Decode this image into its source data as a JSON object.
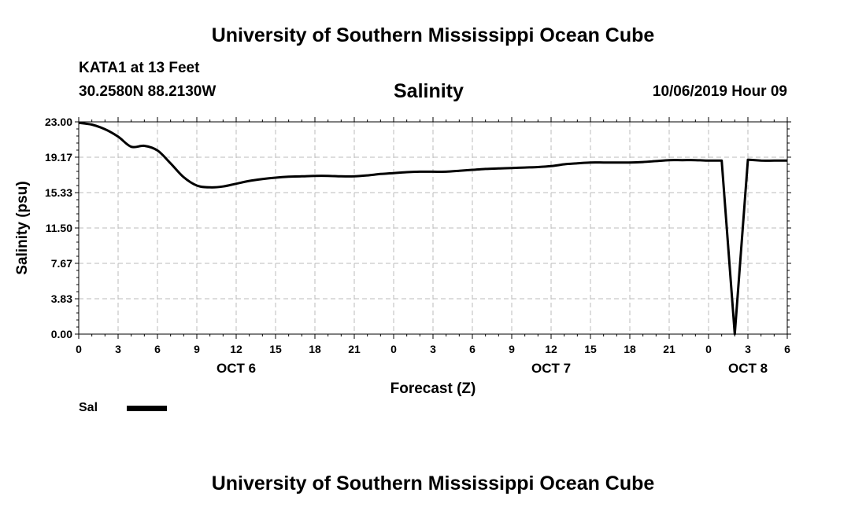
{
  "header": {
    "title": "University of Southern Mississippi Ocean Cube",
    "station": "KATA1 at 13 Feet",
    "coords": "30.2580N 88.2130W",
    "datetime": "10/06/2019 Hour 09"
  },
  "footer": {
    "title": "University of Southern Mississippi Ocean Cube"
  },
  "legend": {
    "label": "Sal"
  },
  "colors": {
    "line": "#000000",
    "grid": "#bbbbbb"
  },
  "chart_data": {
    "type": "line",
    "title": "Salinity",
    "xlabel": "Forecast (Z)",
    "ylabel": "Salinity (psu)",
    "ylim": [
      0,
      23
    ],
    "xlim": [
      0,
      54
    ],
    "grid": true,
    "y_ticks": [
      "0.00",
      "3.83",
      "7.67",
      "11.50",
      "15.33",
      "19.17",
      "23.00"
    ],
    "y_tick_values": [
      0,
      3.83,
      7.67,
      11.5,
      15.33,
      19.17,
      23.0
    ],
    "x_ticks": [
      "0",
      "3",
      "6",
      "9",
      "12",
      "15",
      "18",
      "21",
      "0",
      "3",
      "6",
      "9",
      "12",
      "15",
      "18",
      "21",
      "0",
      "3",
      "6"
    ],
    "x_tick_values": [
      0,
      3,
      6,
      9,
      12,
      15,
      18,
      21,
      24,
      27,
      30,
      33,
      36,
      39,
      42,
      45,
      48,
      51,
      54
    ],
    "day_labels": [
      {
        "label": "OCT 6",
        "hour": 12
      },
      {
        "label": "OCT 7",
        "hour": 36
      },
      {
        "label": "OCT 8",
        "hour": 51
      }
    ],
    "series": [
      {
        "name": "Sal",
        "x": [
          0,
          1,
          2,
          3,
          4,
          5,
          6,
          7,
          8,
          9,
          10,
          11,
          12,
          13,
          14,
          15,
          16,
          17,
          18,
          19,
          20,
          21,
          22,
          23,
          24,
          25,
          26,
          27,
          28,
          29,
          30,
          31,
          32,
          33,
          34,
          35,
          36,
          37,
          38,
          39,
          40,
          41,
          42,
          43,
          44,
          45,
          46,
          47,
          48,
          49,
          50,
          51,
          52,
          53,
          54
        ],
        "values": [
          22.9,
          22.7,
          22.2,
          21.4,
          20.3,
          20.4,
          19.9,
          18.5,
          17.0,
          16.1,
          15.9,
          16.0,
          16.3,
          16.6,
          16.8,
          16.95,
          17.05,
          17.1,
          17.15,
          17.15,
          17.1,
          17.1,
          17.2,
          17.35,
          17.45,
          17.55,
          17.6,
          17.6,
          17.6,
          17.7,
          17.8,
          17.9,
          17.95,
          18.0,
          18.05,
          18.1,
          18.2,
          18.4,
          18.5,
          18.6,
          18.6,
          18.6,
          18.6,
          18.65,
          18.75,
          18.85,
          18.85,
          18.85,
          18.8,
          18.8,
          0.0,
          18.9,
          18.8,
          18.8,
          18.8
        ]
      }
    ]
  }
}
